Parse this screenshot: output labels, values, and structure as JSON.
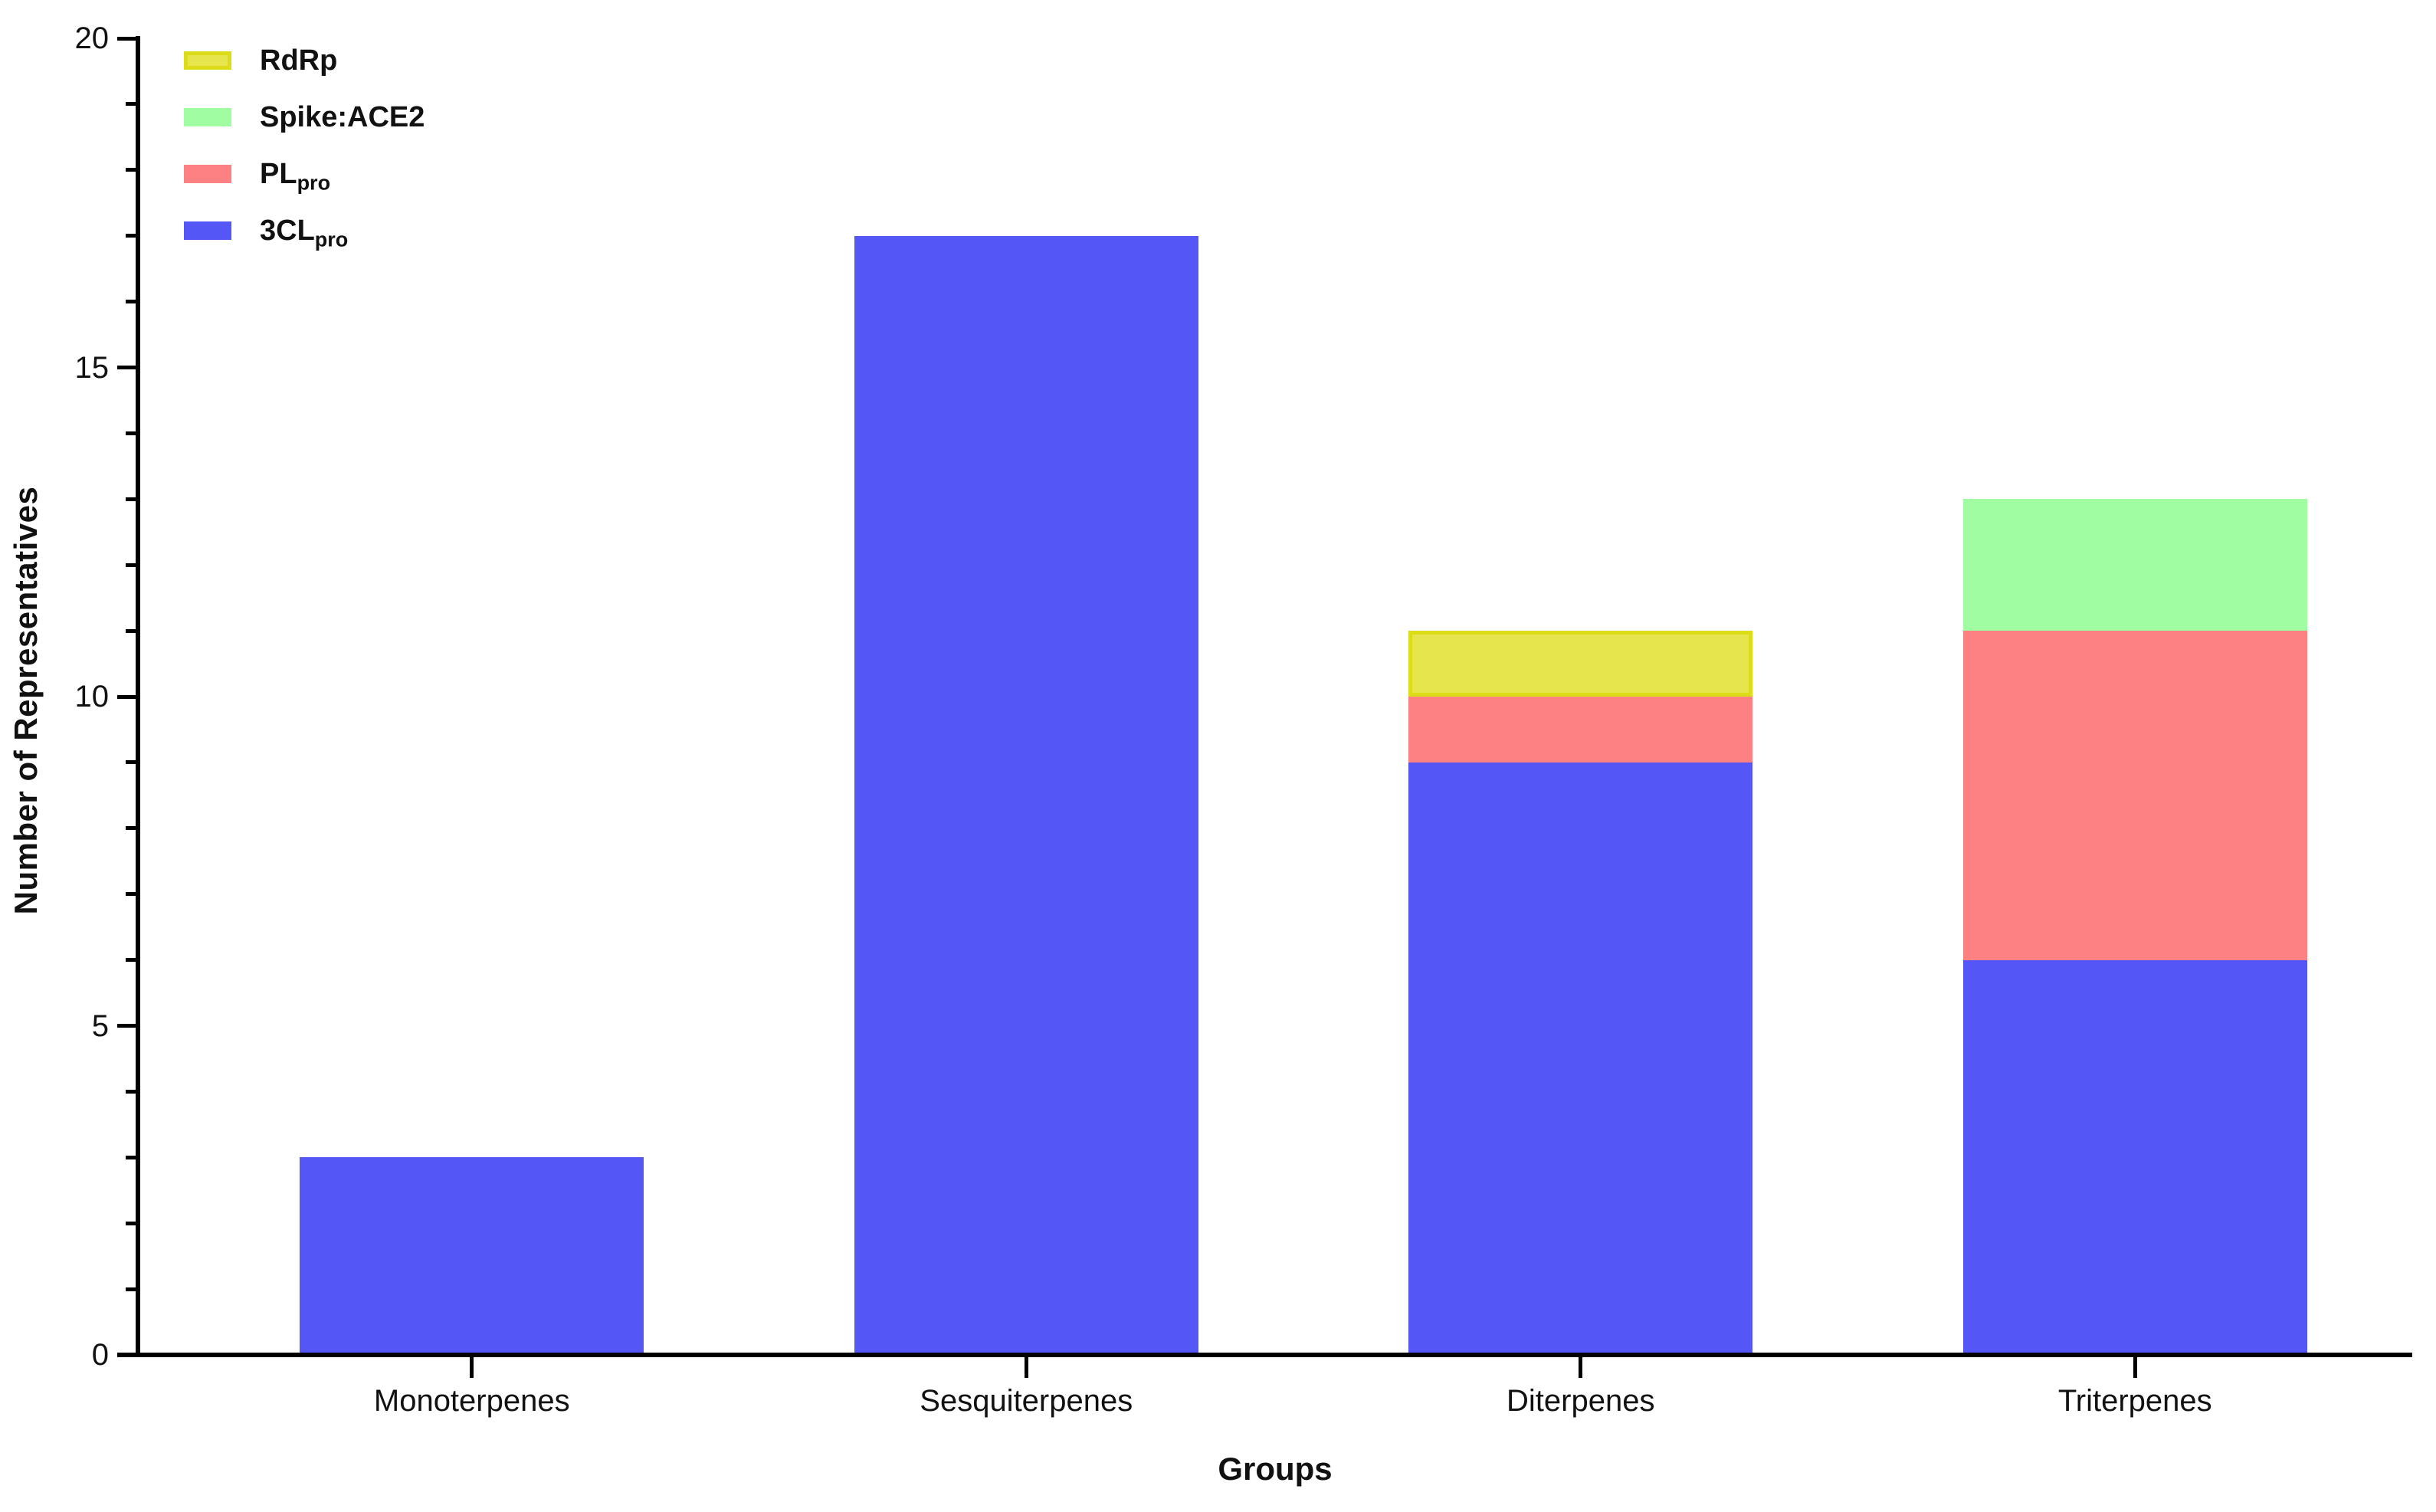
{
  "figure": {
    "background": "#ffffff",
    "axis_color": "#000000",
    "text_color": "#111111"
  },
  "y_axis": {
    "title": "Number of Representatives",
    "min": 0,
    "max": 20,
    "major_step": 5,
    "minor_step": 1,
    "major_tick_labels": [
      "0",
      "5",
      "10",
      "15",
      "20"
    ]
  },
  "x_axis": {
    "title": "Groups"
  },
  "legend": {
    "position": "top-left",
    "items": [
      {
        "label": "RdRp",
        "sub": "",
        "color": "#dcdd18",
        "fill": "#e6e54e",
        "bordered": true
      },
      {
        "label": "Spike:ACE2",
        "sub": "",
        "color": "#a0fda1",
        "fill": "#a0fda1",
        "bordered": false
      },
      {
        "label": "PL",
        "sub": "pro",
        "color": "#fd8082",
        "fill": "#fd8082",
        "bordered": false
      },
      {
        "label": "3CL",
        "sub": "pro",
        "color": "#5457f5",
        "fill": "#5457f5",
        "bordered": false
      }
    ]
  },
  "chart_data": {
    "type": "bar",
    "stacked": true,
    "title": "",
    "xlabel": "Groups",
    "ylabel": "Number of Representatives",
    "ylim": [
      0,
      20
    ],
    "grid": false,
    "legend_position": "top-left",
    "categories": [
      "Monoterpenes",
      "Sesquiterpenes",
      "Diterpenes",
      "Triterpenes"
    ],
    "series": [
      {
        "name": "3CLpro",
        "color": "#5457f5",
        "values": [
          3,
          17,
          9,
          6
        ]
      },
      {
        "name": "PLpro",
        "color": "#fd8082",
        "values": [
          0,
          0,
          1,
          5
        ]
      },
      {
        "name": "Spike:ACE2",
        "color": "#a0fda1",
        "values": [
          0,
          0,
          0,
          2
        ]
      },
      {
        "name": "RdRp",
        "color": "#e6e54e",
        "border_color": "#dcdd18",
        "values": [
          0,
          0,
          1,
          0
        ]
      }
    ],
    "totals": [
      3,
      17,
      11,
      13
    ]
  }
}
